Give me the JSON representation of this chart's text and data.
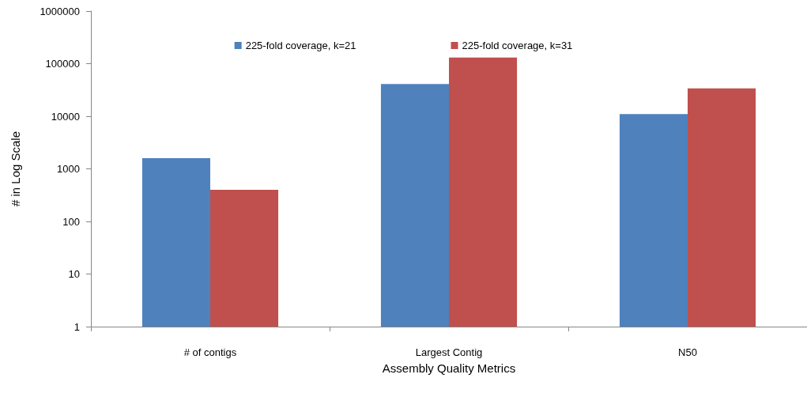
{
  "chart_data": {
    "type": "bar",
    "xlabel": "Assembly Quality Metrics",
    "ylabel": "# in Log Scale",
    "categories": [
      "# of contigs",
      "Largest Contig",
      "N50"
    ],
    "series": [
      {
        "name": "225-fold coverage, k=21",
        "color": "#4f81bd",
        "values": [
          1600,
          41000,
          11000
        ]
      },
      {
        "name": "225-fold coverage, k=31",
        "color": "#c0504d",
        "values": [
          400,
          131000,
          34000
        ]
      }
    ],
    "log": true,
    "ylim": [
      1,
      1000000
    ],
    "yticks": [
      1,
      10,
      100,
      1000,
      10000,
      100000,
      1000000
    ],
    "grid": false,
    "legend": "top"
  }
}
